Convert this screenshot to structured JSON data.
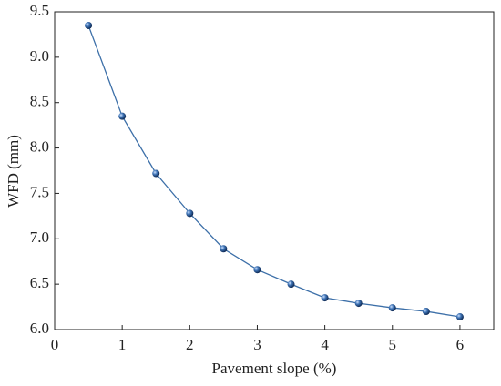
{
  "chart_data": {
    "type": "line",
    "xlabel": "Pavement slope (%)",
    "ylabel": "WFD (mm)",
    "x": [
      0.5,
      1,
      1.5,
      2,
      2.5,
      3,
      3.5,
      4,
      4.5,
      5,
      5.5,
      6
    ],
    "series": [
      {
        "color": "#3c6fa8",
        "values": [
          9.35,
          8.35,
          7.72,
          7.28,
          6.89,
          6.66,
          6.5,
          6.35,
          6.29,
          6.24,
          6.2,
          6.14
        ]
      }
    ],
    "xlim": [
      0,
      6.5
    ],
    "xticks": [
      0,
      1,
      2,
      3,
      4,
      5,
      6
    ],
    "ylim": [
      6.0,
      9.5
    ],
    "yticks": [
      {
        "value": 6.0,
        "label": "6.0"
      },
      6.5,
      {
        "value": 7.0,
        "label": "7.0"
      },
      7.5,
      {
        "value": 8.0,
        "label": "8.0"
      },
      8.5,
      {
        "value": 9.0,
        "label": "9.0"
      },
      9.5
    ]
  }
}
